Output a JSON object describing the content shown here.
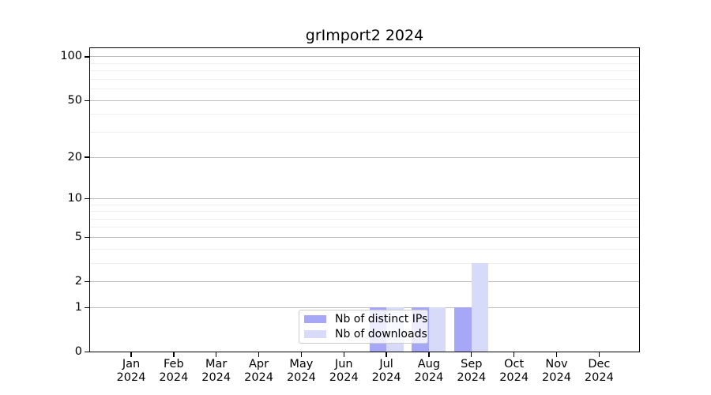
{
  "chart_data": {
    "type": "bar",
    "title": "grImport2 2024",
    "categories": [
      "Jan",
      "Feb",
      "Mar",
      "Apr",
      "May",
      "Jun",
      "Jul",
      "Aug",
      "Sep",
      "Oct",
      "Nov",
      "Dec"
    ],
    "x_tick_year": "2024",
    "series": [
      {
        "name": "Nb of distinct IPs",
        "color": "#a6a7f6",
        "values": [
          0,
          0,
          0,
          0,
          0,
          0,
          1,
          1,
          1,
          0,
          0,
          0
        ]
      },
      {
        "name": "Nb of downloads",
        "color": "#d8dafa",
        "values": [
          0,
          0,
          0,
          0,
          0,
          0,
          1,
          1,
          3,
          0,
          0,
          0
        ]
      }
    ],
    "y_scale": "log1p",
    "ylim": [
      0,
      116
    ],
    "y_major_ticks": [
      0,
      1,
      2,
      5,
      10,
      20,
      50,
      100
    ],
    "y_minor_gridlines": [
      3,
      4,
      6,
      7,
      8,
      9,
      30,
      40,
      60,
      70,
      80,
      90
    ],
    "grid": {
      "major_color": "#bdbdbd",
      "minor_color": "#efefef"
    },
    "legend": {
      "position": "inside-bottom-center"
    },
    "frame_color": "#000000",
    "text_color": "#000000",
    "background_color": "#ffffff"
  }
}
